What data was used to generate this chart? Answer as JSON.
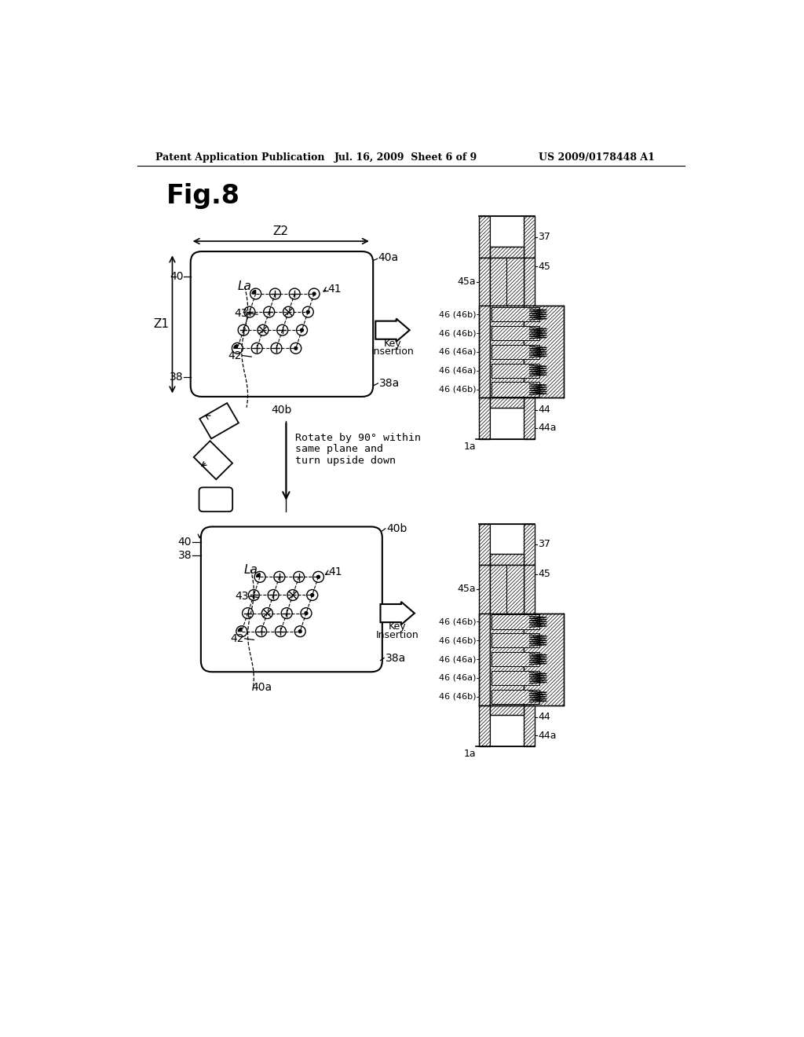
{
  "header_left": "Patent Application Publication",
  "header_mid": "Jul. 16, 2009  Sheet 6 of 9",
  "header_right": "US 2009/0178448 A1",
  "bg_color": "#ffffff",
  "text_color": "#000000",
  "fig_title": "Fig.8",
  "cs_units_top": [
    [
      "46 (46b)",
      "b"
    ],
    [
      "46 (46b)",
      "b"
    ],
    [
      "46 (46a)",
      "a"
    ],
    [
      "46 (46a)",
      "a"
    ],
    [
      "46 (46b)",
      "b"
    ]
  ],
  "cs_units_bot": [
    [
      "46 (46b)",
      "b"
    ],
    [
      "46 (46b)",
      "b"
    ],
    [
      "46 (46a)",
      "a"
    ],
    [
      "46 (46a)",
      "a"
    ],
    [
      "46 (46b)",
      "b"
    ]
  ]
}
